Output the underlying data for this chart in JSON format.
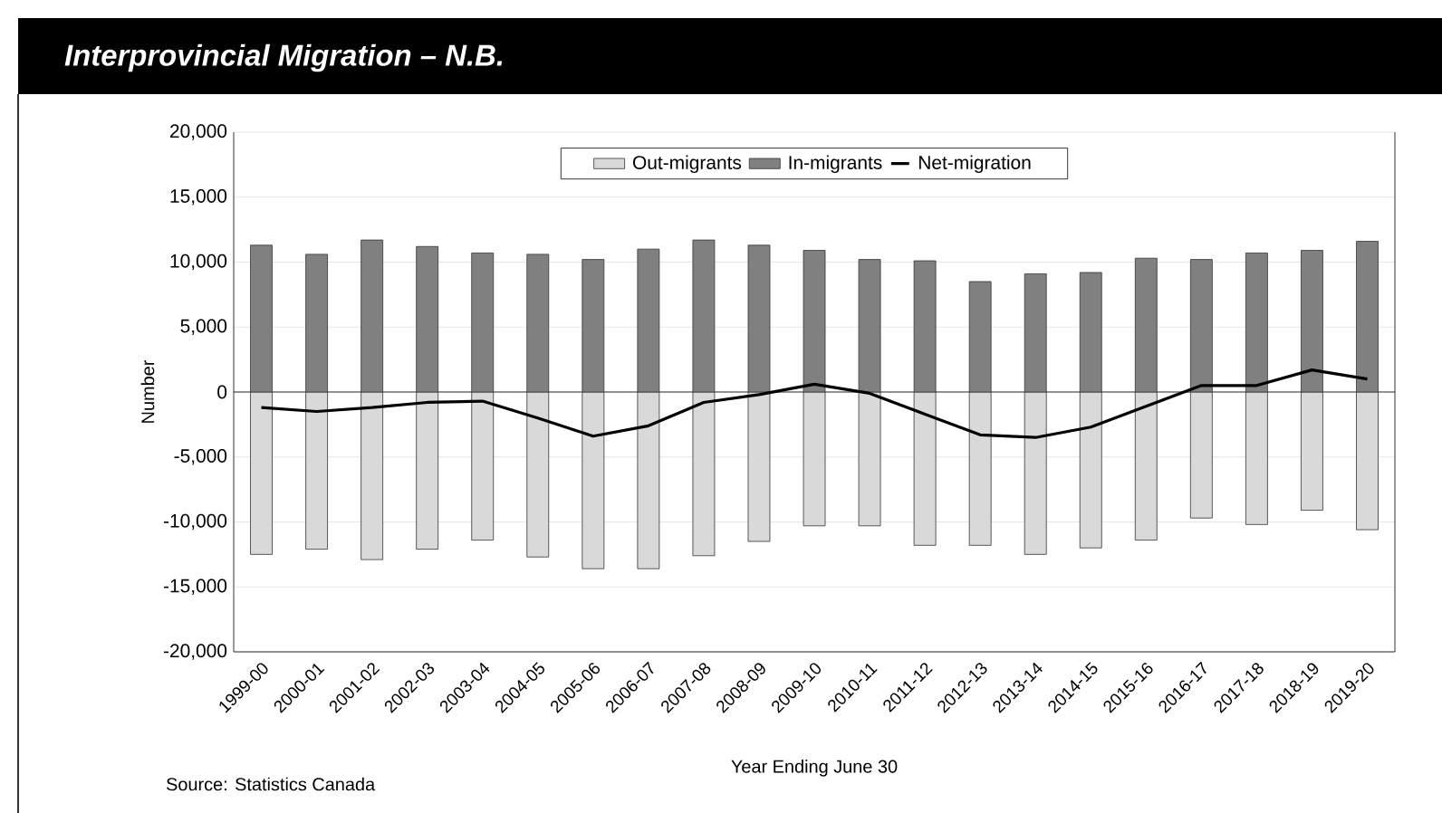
{
  "chart_data": {
    "type": "bar",
    "title": "Interprovincial Migration – N.B.",
    "xlabel": "Year Ending June 30",
    "ylabel": "Number",
    "categories": [
      "1999-00",
      "2000-01",
      "2001-02",
      "2002-03",
      "2003-04",
      "2004-05",
      "2005-06",
      "2006-07",
      "2007-08",
      "2008-09",
      "2009-10",
      "2010-11",
      "2011-12",
      "2012-13",
      "2013-14",
      "2014-15",
      "2015-16",
      "2016-17",
      "2017-18",
      "2018-19",
      "2019-20"
    ],
    "series": [
      {
        "name": "Out-migrants",
        "color": "#d9d9d9",
        "values": [
          -12500,
          -12100,
          -12900,
          -12100,
          -11400,
          -12700,
          -13600,
          -13600,
          -12600,
          -11500,
          -10300,
          -10300,
          -11800,
          -11800,
          -12500,
          -12000,
          -11400,
          -9700,
          -10200,
          -9100,
          -10600
        ]
      },
      {
        "name": "In-migrants",
        "color": "#808080",
        "values": [
          11300,
          10600,
          11700,
          11200,
          10700,
          10600,
          10200,
          11000,
          11700,
          11300,
          10900,
          10200,
          10100,
          8500,
          9100,
          9200,
          10300,
          10200,
          10700,
          10900,
          11600
        ]
      },
      {
        "name": "Net-migration",
        "type": "line",
        "color": "#000000",
        "values": [
          -1200,
          -1500,
          -1200,
          -800,
          -700,
          -2000,
          -3400,
          -2600,
          -800,
          -200,
          600,
          -100,
          -1700,
          -3300,
          -3500,
          -2700,
          -1100,
          500,
          500,
          1700,
          1000
        ]
      }
    ],
    "ylim": [
      -20000,
      20000
    ],
    "yticks": [
      {
        "value": -20000,
        "label": "-20,000"
      },
      {
        "value": -15000,
        "label": "-15,000"
      },
      {
        "value": -10000,
        "label": "-10,000"
      },
      {
        "value": -5000,
        "label": "-5,000"
      },
      0,
      {
        "value": 5000,
        "label": "5,000"
      },
      {
        "value": 10000,
        "label": "10,000"
      },
      {
        "value": 15000,
        "label": "15,000"
      },
      {
        "value": 20000,
        "label": "20,000"
      }
    ],
    "grid": "y",
    "legend": "top",
    "stacked": true,
    "annotations": [
      "Source: Statistics Canada"
    ]
  }
}
